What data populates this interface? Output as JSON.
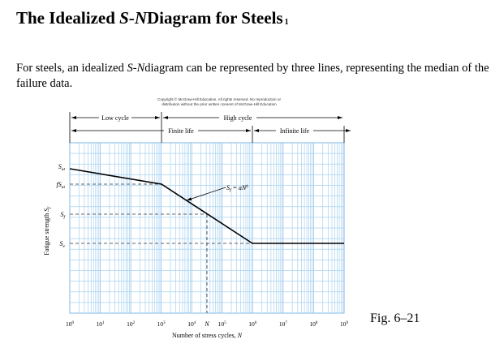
{
  "title": {
    "prefix": "The Idealized ",
    "sn": "S-N",
    "suffix": "Diagram for Steels",
    "note": "1"
  },
  "paragraph": {
    "before": "For steels, an idealized ",
    "sn": "S-N",
    "after": "diagram can be represented by three lines, representing the median of the failure data."
  },
  "copyright": {
    "line1": "Copyright © McGraw-Hill Education. All rights reserved. No reproduction or",
    "line2": "distribution without the prior written consent of McGraw-Hill Education"
  },
  "regions": {
    "low_cycle": "Low cycle",
    "high_cycle": "High cycle",
    "finite_life": "Finite life",
    "infinite_life": "Infinite life"
  },
  "equation": "S_f = aN^b",
  "axis": {
    "ylabel": "Fatigue strength S_f",
    "xlabel": "Number of stress cycles, N",
    "x_ticks": [
      "10^0",
      "10^1",
      "10^2",
      "10^3",
      "10^4",
      "10^5",
      "10^6",
      "10^7",
      "10^8",
      "10^9"
    ],
    "y_levels": [
      "S_ut",
      "fS_ut",
      "S_f",
      "S_e"
    ],
    "n_marker": "N"
  },
  "figure_caption": "Fig. 6–21"
}
